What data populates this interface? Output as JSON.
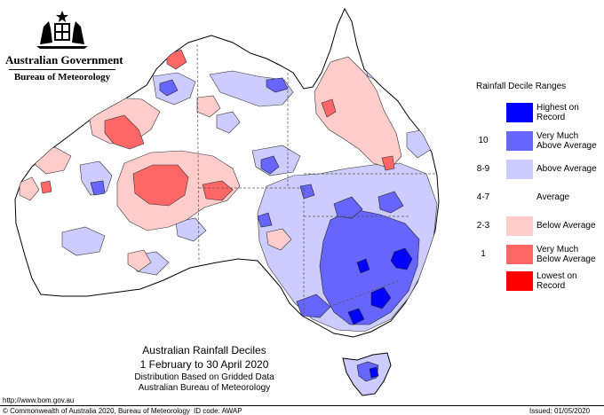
{
  "header": {
    "government": "Australian Government",
    "bureau": "Bureau of Meteorology"
  },
  "legend": {
    "title": "Rainfall Decile Ranges",
    "items": [
      {
        "label": "",
        "line1": "Highest on",
        "line2": "Record",
        "color": "#0000ff"
      },
      {
        "label": "10",
        "line1": "Very Much",
        "line2": "Above Average",
        "color": "#6666ff"
      },
      {
        "label": "8-9",
        "line1": "Above Average",
        "line2": "",
        "color": "#ccccff"
      },
      {
        "label": "4-7",
        "line1": "Average",
        "line2": "",
        "color": "#ffffff"
      },
      {
        "label": "2-3",
        "line1": "Below Average",
        "line2": "",
        "color": "#ffcccc"
      },
      {
        "label": "1",
        "line1": "Very Much",
        "line2": "Below Average",
        "color": "#ff6666"
      },
      {
        "label": "",
        "line1": "Lowest on",
        "line2": "Record",
        "color": "#ff0000"
      }
    ]
  },
  "caption": {
    "title": "Australian Rainfall Deciles",
    "period": "1 February to 30 April 2020",
    "method": "Distribution Based on Gridded Data",
    "source": "Australian Bureau of Meteorology"
  },
  "footer": {
    "url": "http://www.bom.gov.au",
    "copyright": "© Commonwealth of Australia 2020, Bureau of Meteorology",
    "id_code": "ID code: AWAP",
    "issued": "Issued: 01/05/2020"
  },
  "map_colors": {
    "highest": "#0000ff",
    "very_much_above": "#6666ff",
    "above": "#ccccff",
    "average": "#ffffff",
    "below": "#ffcccc",
    "very_much_below": "#ff6666",
    "lowest": "#ff0000"
  }
}
